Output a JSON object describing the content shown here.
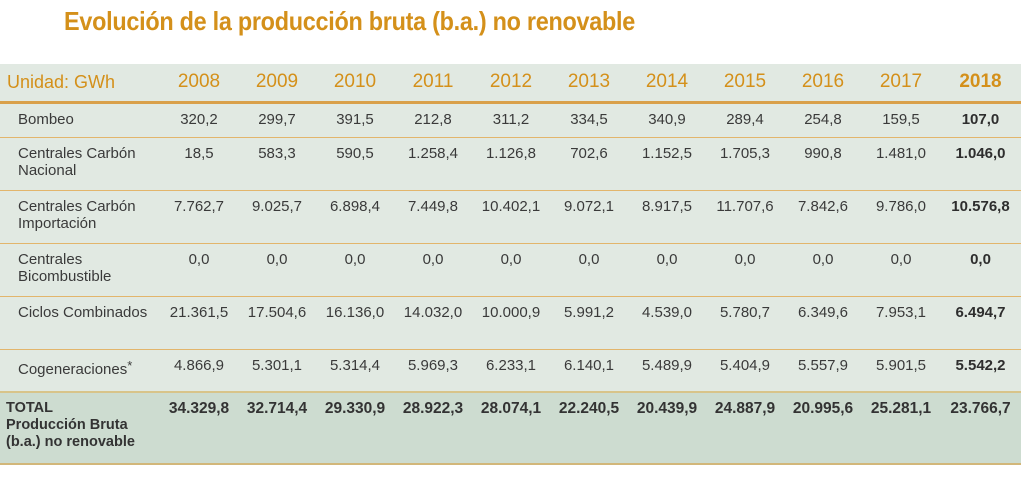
{
  "title": "Evolución de la producción bruta (b.a.) no renovable",
  "table": {
    "unit_label": "Unidad: GWh",
    "years": [
      "2008",
      "2009",
      "2010",
      "2011",
      "2012",
      "2013",
      "2014",
      "2015",
      "2016",
      "2017",
      "2018"
    ],
    "rows": [
      {
        "label": "Bombeo",
        "values": [
          "320,2",
          "299,7",
          "391,5",
          "212,8",
          "311,2",
          "334,5",
          "340,9",
          "289,4",
          "254,8",
          "159,5",
          "107,0"
        ]
      },
      {
        "label": "Centrales Carbón Nacional",
        "values": [
          "18,5",
          "583,3",
          "590,5",
          "1.258,4",
          "1.126,8",
          "702,6",
          "1.152,5",
          "1.705,3",
          "990,8",
          "1.481,0",
          "1.046,0"
        ]
      },
      {
        "label": "Centrales Carbón Importación",
        "values": [
          "7.762,7",
          "9.025,7",
          "6.898,4",
          "7.449,8",
          "10.402,1",
          "9.072,1",
          "8.917,5",
          "11.707,6",
          "7.842,6",
          "9.786,0",
          "10.576,8"
        ]
      },
      {
        "label": "Centrales Bicombustible",
        "values": [
          "0,0",
          "0,0",
          "0,0",
          "0,0",
          "0,0",
          "0,0",
          "0,0",
          "0,0",
          "0,0",
          "0,0",
          "0,0"
        ]
      },
      {
        "label": "Ciclos Combinados",
        "values": [
          "21.361,5",
          "17.504,6",
          "16.136,0",
          "14.032,0",
          "10.000,9",
          "5.991,2",
          "4.539,0",
          "5.780,7",
          "6.349,6",
          "7.953,1",
          "6.494,7"
        ]
      },
      {
        "label": "Cogeneraciones",
        "footnote_mark": "*",
        "values": [
          "4.866,9",
          "5.301,1",
          "5.314,4",
          "5.969,3",
          "6.233,1",
          "6.140,1",
          "5.489,9",
          "5.404,9",
          "5.557,9",
          "5.901,5",
          "5.542,2"
        ]
      }
    ],
    "total": {
      "label": "TOTAL Producción Bruta (b.a.) no renovable",
      "label_lines": [
        "TOTAL",
        "Producción Bruta",
        "(b.a.) no renovable"
      ],
      "values": [
        "34.329,8",
        "32.714,4",
        "29.330,9",
        "28.922,3",
        "28.074,1",
        "22.240,5",
        "20.439,9",
        "24.887,9",
        "20.995,6",
        "25.281,1",
        "23.766,7"
      ]
    }
  },
  "colors": {
    "accent": "#d4901a",
    "row_bg": "#e1e9e2",
    "total_bg": "#cddcd0",
    "divider": "#e2b56c"
  }
}
